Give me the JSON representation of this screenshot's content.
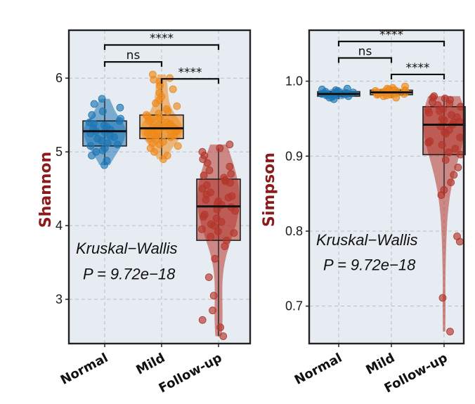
{
  "colors": {
    "Normal": "#1f77b4",
    "Mild": "#ee8a1c",
    "Follow-up": "#b4362b",
    "panel_bg": "#e6ecf1"
  },
  "chart_data": [
    {
      "type": "box",
      "id": "shannon",
      "ylabel": "Shannon",
      "categories": [
        "Normal",
        "Mild",
        "Follow-up"
      ],
      "ylim": [
        2.4,
        6.65
      ],
      "yticks": [
        3,
        4,
        5,
        6
      ],
      "grid": true,
      "boxes": [
        {
          "name": "Normal",
          "q1": 5.08,
          "median": 5.28,
          "q3": 5.42,
          "whisker_low": 4.82,
          "whisker_high": 5.72,
          "points": [
            4.82,
            4.88,
            4.95,
            5.0,
            5.02,
            5.05,
            5.08,
            5.1,
            5.12,
            5.15,
            5.18,
            5.2,
            5.22,
            5.25,
            5.27,
            5.28,
            5.3,
            5.32,
            5.34,
            5.36,
            5.38,
            5.4,
            5.42,
            5.45,
            5.5,
            5.55,
            5.6,
            5.65,
            5.72
          ]
        },
        {
          "name": "Mild",
          "q1": 5.18,
          "median": 5.32,
          "q3": 5.5,
          "whisker_low": 4.9,
          "whisker_high": 5.98,
          "points": [
            4.9,
            4.95,
            5.0,
            5.05,
            5.08,
            5.1,
            5.12,
            5.14,
            5.16,
            5.18,
            5.2,
            5.22,
            5.24,
            5.26,
            5.28,
            5.3,
            5.31,
            5.32,
            5.33,
            5.34,
            5.36,
            5.38,
            5.4,
            5.42,
            5.44,
            5.46,
            5.48,
            5.5,
            5.52,
            5.55,
            5.58,
            5.62,
            5.66,
            5.7,
            5.75,
            5.8,
            5.85,
            5.9,
            5.95,
            5.98,
            6.05,
            6.0,
            5.28,
            5.25,
            5.35,
            5.22,
            5.3,
            5.27,
            5.33,
            5.29
          ]
        },
        {
          "name": "Follow-up",
          "q1": 3.8,
          "median": 4.26,
          "q3": 4.63,
          "whisker_low": 2.5,
          "whisker_high": 5.05,
          "points": [
            2.5,
            2.62,
            2.72,
            2.85,
            3.05,
            3.3,
            3.55,
            3.72,
            3.8,
            3.85,
            3.9,
            3.95,
            4.0,
            4.05,
            4.1,
            4.15,
            4.2,
            4.22,
            4.25,
            4.28,
            4.3,
            4.35,
            4.38,
            4.4,
            4.45,
            4.5,
            4.55,
            4.6,
            4.62,
            4.65,
            4.7,
            4.75,
            4.8,
            4.85,
            4.9,
            4.95,
            5.0,
            5.05,
            5.1,
            4.58,
            4.42,
            4.33,
            4.12,
            4.02,
            3.92,
            4.68
          ]
        }
      ],
      "comparisons": [
        {
          "a": "Normal",
          "b": "Follow-up",
          "label": "****",
          "y": 6.45
        },
        {
          "a": "Normal",
          "b": "Mild",
          "label": "ns",
          "y": 6.22
        },
        {
          "a": "Mild",
          "b": "Follow-up",
          "label": "****",
          "y": 5.99
        }
      ],
      "annotation": {
        "line1": "Kruskal−Wallis",
        "line2": "P = 9.72e−18"
      }
    },
    {
      "type": "box",
      "id": "simpson",
      "ylabel": "Simpson",
      "categories": [
        "Normal",
        "Mild",
        "Follow-up"
      ],
      "ylim": [
        0.65,
        1.068
      ],
      "yticks": [
        0.7,
        0.8,
        0.9,
        1.0
      ],
      "ytick_labels": [
        "0.7",
        "0.8",
        "0.9",
        "1.0"
      ],
      "grid": true,
      "boxes": [
        {
          "name": "Normal",
          "q1": 0.98,
          "median": 0.983,
          "q3": 0.986,
          "whisker_low": 0.976,
          "whisker_high": 0.99,
          "points": [
            0.976,
            0.978,
            0.979,
            0.98,
            0.981,
            0.982,
            0.983,
            0.983,
            0.984,
            0.985,
            0.986,
            0.987,
            0.988,
            0.989,
            0.99,
            0.982,
            0.984,
            0.981,
            0.985,
            0.983
          ]
        },
        {
          "name": "Mild",
          "q1": 0.982,
          "median": 0.985,
          "q3": 0.988,
          "whisker_low": 0.978,
          "whisker_high": 0.993,
          "points": [
            0.978,
            0.98,
            0.981,
            0.982,
            0.983,
            0.984,
            0.985,
            0.985,
            0.986,
            0.987,
            0.988,
            0.989,
            0.99,
            0.991,
            0.993,
            0.984,
            0.986,
            0.983,
            0.987,
            0.985,
            0.982,
            0.988
          ]
        },
        {
          "name": "Follow-up",
          "q1": 0.902,
          "median": 0.942,
          "q3": 0.966,
          "whisker_low": 0.848,
          "whisker_high": 0.98,
          "points": [
            0.666,
            0.711,
            0.786,
            0.793,
            0.848,
            0.855,
            0.865,
            0.875,
            0.885,
            0.895,
            0.902,
            0.905,
            0.91,
            0.915,
            0.92,
            0.925,
            0.93,
            0.935,
            0.94,
            0.942,
            0.945,
            0.948,
            0.95,
            0.952,
            0.955,
            0.958,
            0.96,
            0.963,
            0.966,
            0.97,
            0.972,
            0.975,
            0.978,
            0.98,
            0.977,
            0.968,
            0.962,
            0.946,
            0.932,
            0.918
          ]
        }
      ],
      "comparisons": [
        {
          "a": "Normal",
          "b": "Follow-up",
          "label": "****",
          "y": 1.053
        },
        {
          "a": "Normal",
          "b": "Mild",
          "label": "ns",
          "y": 1.031
        },
        {
          "a": "Mild",
          "b": "Follow-up",
          "label": "****",
          "y": 1.009
        }
      ],
      "annotation": {
        "line1": "Kruskal−Wallis",
        "line2": "P = 9.72e−18"
      }
    }
  ]
}
